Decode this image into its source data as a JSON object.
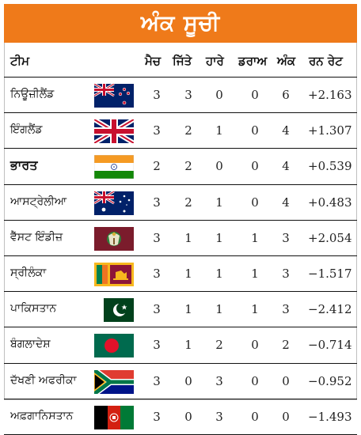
{
  "title": "ਅੰਕ ਸੂਚੀ",
  "columns": {
    "team": "ਟੀਮ",
    "matches": "ਮੈਚ",
    "won": "ਜਿੱਤੇ",
    "lost": "ਹਾਰੇ",
    "draw": "ਡਰਾਅ",
    "points": "ਅੰਕ",
    "run_rate": "ਰਨ ਰੇਟ"
  },
  "rows": [
    {
      "team": "ਨਿਊਜ਼ੀਲੈਂਡ",
      "flag": "new-zealand-flag",
      "matches": "3",
      "won": "3",
      "lost": "0",
      "draw": "0",
      "points": "6",
      "run_rate": "+2.163"
    },
    {
      "team": "ਇੰਗਲੈਂਡ",
      "flag": "united-kingdom-flag",
      "matches": "3",
      "won": "2",
      "lost": "1",
      "draw": "0",
      "points": "4",
      "run_rate": "+1.307"
    },
    {
      "team": "ਭਾਰਤ",
      "flag": "india-flag",
      "matches": "2",
      "won": "2",
      "lost": "0",
      "draw": "0",
      "points": "4",
      "run_rate": "+0.539"
    },
    {
      "team": "ਆਸਟ੍ਰੇਲੀਆ",
      "flag": "australia-flag",
      "matches": "3",
      "won": "2",
      "lost": "1",
      "draw": "0",
      "points": "4",
      "run_rate": "+0.483"
    },
    {
      "team": "ਵੈੱਸਟ ਇੰਡੀਜ਼",
      "flag": "west-indies-flag",
      "matches": "3",
      "won": "1",
      "lost": "1",
      "draw": "1",
      "points": "3",
      "run_rate": "+2.054"
    },
    {
      "team": "ਸ੍ਰੀਲੰਕਾ",
      "flag": "sri-lanka-flag",
      "matches": "3",
      "won": "1",
      "lost": "1",
      "draw": "1",
      "points": "3",
      "run_rate": "−1.517"
    },
    {
      "team": "ਪਾਕਿਸਤਾਨ",
      "flag": "pakistan-flag",
      "matches": "3",
      "won": "1",
      "lost": "1",
      "draw": "1",
      "points": "3",
      "run_rate": "−2.412"
    },
    {
      "team": "ਬੰਗਲਾਦੇਸ਼",
      "flag": "bangladesh-flag",
      "matches": "3",
      "won": "1",
      "lost": "2",
      "draw": "0",
      "points": "2",
      "run_rate": "−0.714"
    },
    {
      "team": "ਦੱਖਣੀ ਅਫਰੀਕਾ",
      "flag": "south-africa-flag",
      "matches": "3",
      "won": "0",
      "lost": "3",
      "draw": "0",
      "points": "0",
      "run_rate": "−0.952"
    },
    {
      "team": "ਅਫ਼ਗਾਨਿਸਤਾਨ",
      "flag": "afghanistan-flag",
      "matches": "3",
      "won": "0",
      "lost": "3",
      "draw": "0",
      "points": "0",
      "run_rate": "−1.493"
    }
  ],
  "colors": {
    "banner": "#ef7a1a",
    "banner_text": "#ffffff",
    "rule": "#111111"
  }
}
